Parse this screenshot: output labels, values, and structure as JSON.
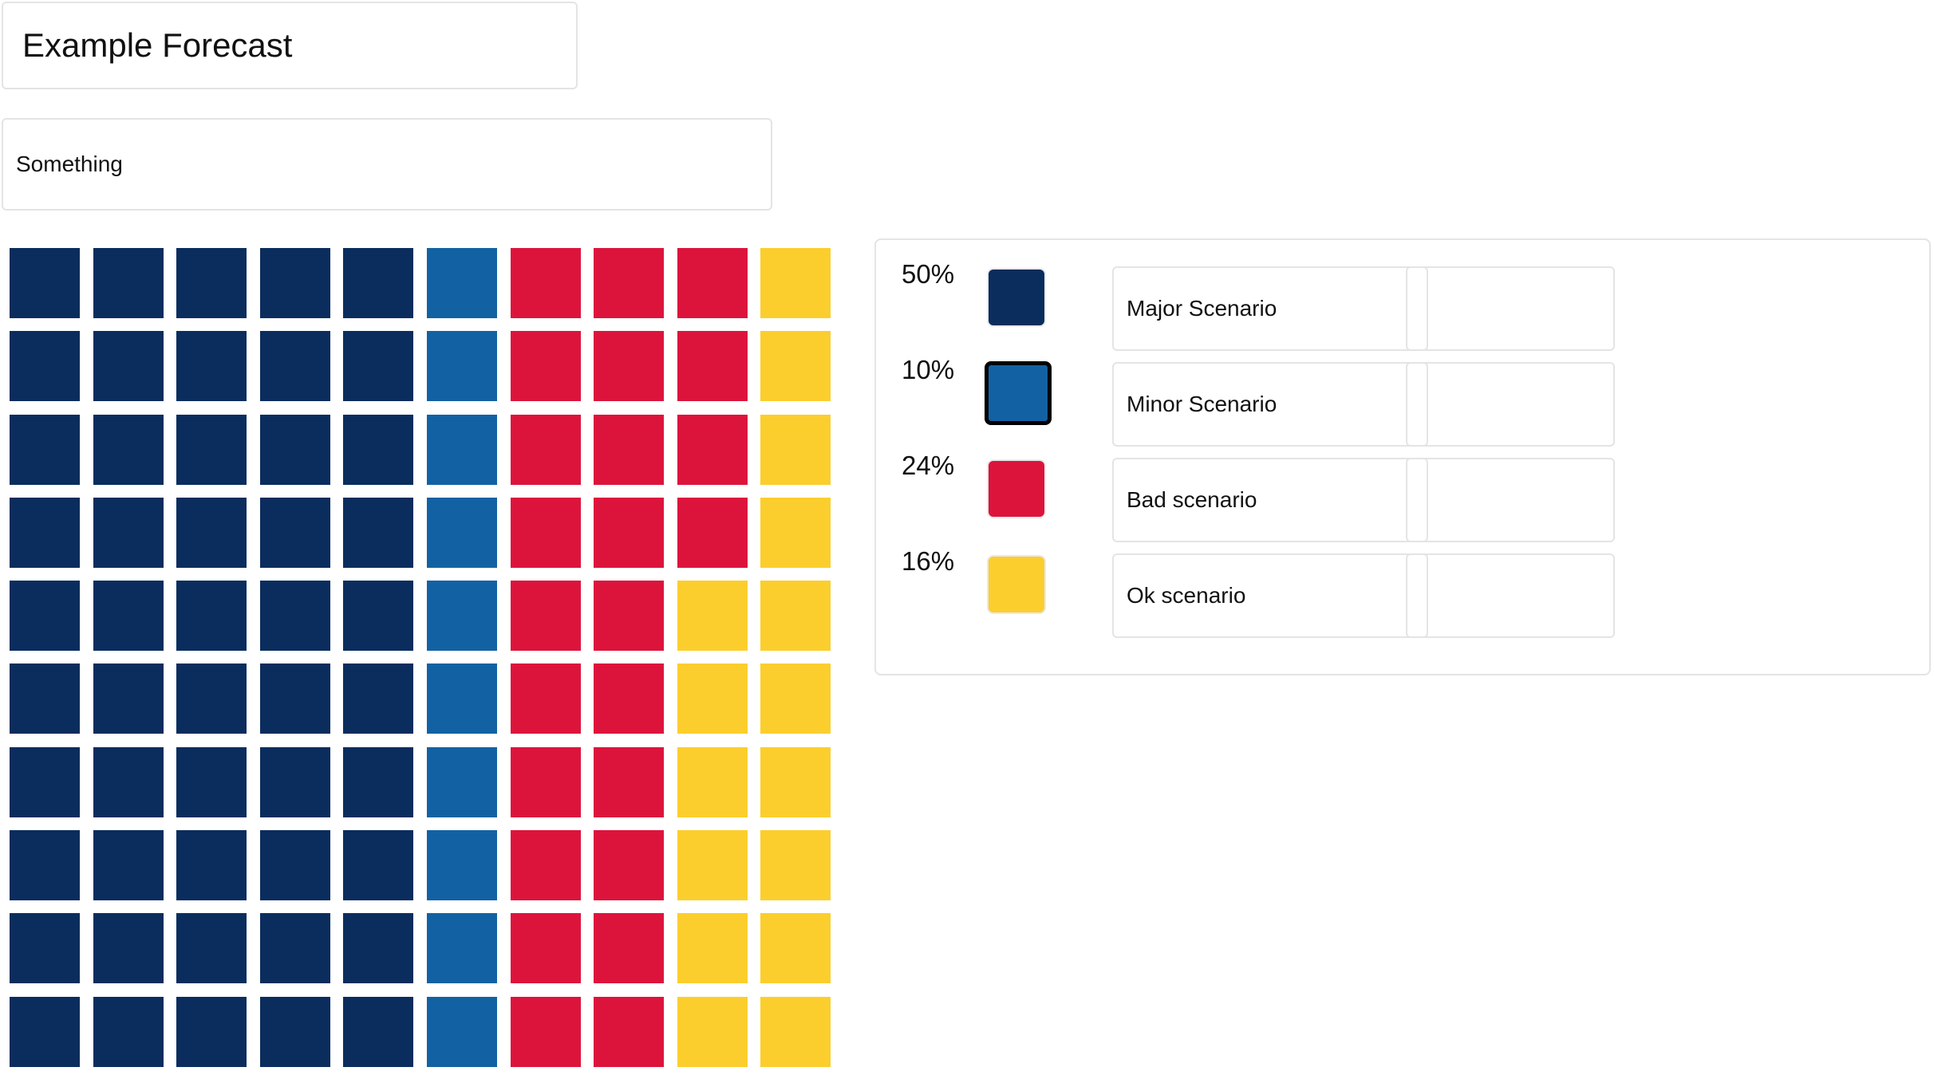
{
  "header": {
    "title": "Example Forecast",
    "subtitle": "Something"
  },
  "chart_data": {
    "type": "waffle",
    "grid": {
      "columns": 10,
      "rows": 10
    },
    "order": "column-major",
    "series": [
      {
        "name": "Major Scenario",
        "percent": 50,
        "label": "50%",
        "color": "#0a2d5e"
      },
      {
        "name": "Minor Scenario",
        "percent": 10,
        "label": "10%",
        "color": "#1262a3"
      },
      {
        "name": "Bad scenario",
        "percent": 24,
        "label": "24%",
        "color": "#dc143c"
      },
      {
        "name": "Ok scenario",
        "percent": 16,
        "label": "16%",
        "color": "#fcce2d"
      }
    ],
    "selected_series": "Minor Scenario"
  }
}
